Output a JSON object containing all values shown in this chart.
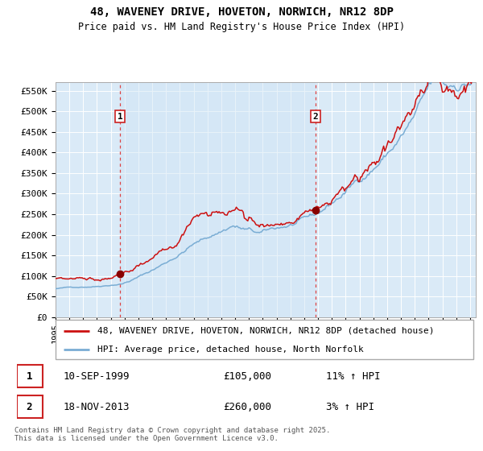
{
  "title": "48, WAVENEY DRIVE, HOVETON, NORWICH, NR12 8DP",
  "subtitle": "Price paid vs. HM Land Registry's House Price Index (HPI)",
  "legend_house": "48, WAVENEY DRIVE, HOVETON, NORWICH, NR12 8DP (detached house)",
  "legend_hpi": "HPI: Average price, detached house, North Norfolk",
  "ylim": [
    0,
    570000
  ],
  "ytick_vals": [
    0,
    50000,
    100000,
    150000,
    200000,
    250000,
    300000,
    350000,
    400000,
    450000,
    500000,
    550000
  ],
  "background_color": "#daeaf7",
  "grid_color": "#ffffff",
  "red_color": "#cc1111",
  "blue_color": "#7aadd4",
  "marker_color": "#880000",
  "dashed_color": "#dd4444",
  "sale1_year": 1999,
  "sale1_month": 9,
  "sale1_value": 105000,
  "sale2_year": 2013,
  "sale2_month": 11,
  "sale2_value": 260000,
  "ann1_date": "10-SEP-1999",
  "ann1_price": "£105,000",
  "ann1_hpi": "11% ↑ HPI",
  "ann2_date": "18-NOV-2013",
  "ann2_price": "£260,000",
  "ann2_hpi": "3% ↑ HPI",
  "footnote": "Contains HM Land Registry data © Crown copyright and database right 2025.\nThis data is licensed under the Open Government Licence v3.0."
}
